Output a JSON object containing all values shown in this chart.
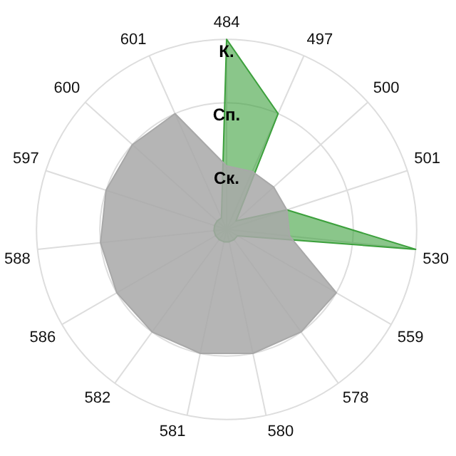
{
  "chart_data": {
    "type": "radar",
    "categories": [
      "484",
      "497",
      "500",
      "501",
      "530",
      "559",
      "578",
      "580",
      "581",
      "582",
      "586",
      "588",
      "597",
      "600",
      "601"
    ],
    "series": [
      {
        "color": "#a8a8a8",
        "values": [
          1,
          1,
          1,
          1,
          1,
          2,
          2,
          2,
          2,
          2,
          2,
          2,
          2,
          2,
          2
        ]
      },
      {
        "color": "#3ca03c",
        "values": [
          3,
          2,
          0.2,
          1,
          3,
          0.2,
          0.2,
          0.2,
          0.2,
          0.2,
          0.2,
          0.2,
          0.2,
          0.2,
          0.2
        ]
      }
    ],
    "ylim": [
      0,
      3
    ],
    "yticks": [
      {
        "value": 1,
        "label": "Ск."
      },
      {
        "value": 2,
        "label": "Сп."
      },
      {
        "value": 3,
        "label": "К."
      }
    ],
    "grid": true,
    "legend": false,
    "marker": "none"
  }
}
